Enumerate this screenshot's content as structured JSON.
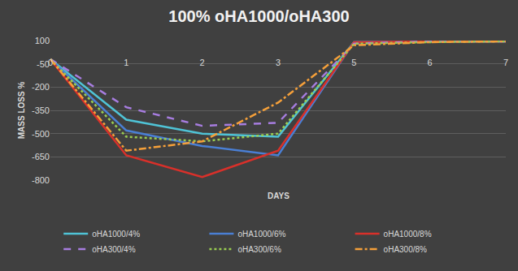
{
  "chart_data": {
    "type": "line",
    "title": "100% oHA1000/oHA300",
    "x_label": "DAYS",
    "y_label": "MASS LOSS %",
    "categories": [
      "0",
      "1",
      "2",
      "3",
      "5",
      "6",
      "7"
    ],
    "series": [
      {
        "name": "oHA1000/4%",
        "color": "#4fc3d6",
        "line_style": "solid",
        "values": [
          -20,
          -410,
          -500,
          -520,
          90,
          95,
          95
        ]
      },
      {
        "name": "oHA1000/6%",
        "color": "#4a7fd4",
        "line_style": "solid",
        "values": [
          -20,
          -480,
          -580,
          -640,
          90,
          95,
          95
        ]
      },
      {
        "name": "oHA1000/8%",
        "color": "#d9302a",
        "line_style": "solid",
        "values": [
          -20,
          -640,
          -780,
          -610,
          90,
          95,
          95
        ]
      },
      {
        "name": "oHA300/4%",
        "color": "#a77de0",
        "line_style": "dash",
        "values": [
          -20,
          -330,
          -450,
          -430,
          80,
          95,
          95
        ]
      },
      {
        "name": "oHA300/6%",
        "color": "#9acd52",
        "line_style": "dot",
        "values": [
          -20,
          -520,
          -550,
          -500,
          80,
          90,
          95
        ]
      },
      {
        "name": "oHA300/8%",
        "color": "#f5a03a",
        "line_style": "dashdot",
        "values": [
          -20,
          -610,
          -550,
          -300,
          70,
          90,
          95
        ]
      }
    ],
    "ylim": [
      -800,
      100
    ],
    "yticks": [
      100,
      -50,
      -200,
      -350,
      -500,
      -650,
      -800
    ],
    "grid": true,
    "legend": "bottom"
  }
}
